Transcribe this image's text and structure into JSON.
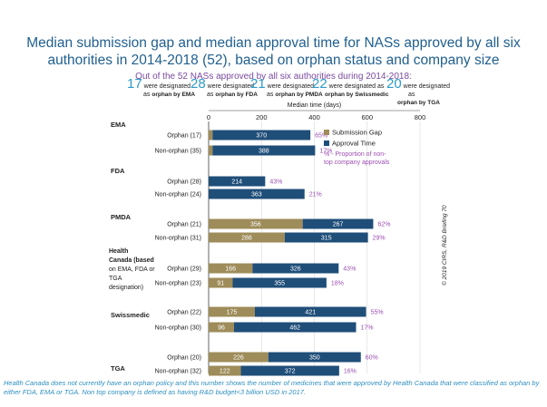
{
  "title_line1": "Median submission gap and median approval time for NASs approved by all six",
  "title_line2": "authorities in 2014-2018 (52), based on orphan status and company size",
  "subtitle": "Out of the 52 NASs approved by all six authorities during 2014-2018:",
  "stats": [
    {
      "num": "17",
      "pre": "were designated",
      "line2_pre": "as ",
      "line2_bold": "orphan by EMA",
      "line3": ""
    },
    {
      "num": "28",
      "pre": "were designated",
      "line2_pre": "as ",
      "line2_bold": "orphan by FDA",
      "line3": ""
    },
    {
      "num": "21",
      "pre": "were designated",
      "line2_pre": "as ",
      "line2_bold": "orphan by PMDA",
      "line3": ""
    },
    {
      "num": "22",
      "pre": "were designated as",
      "line2_pre": "",
      "line2_bold": "orphan by Swissmedic",
      "line3": ""
    },
    {
      "num": "20",
      "pre": "were designated",
      "line2_pre": "as",
      "line2_bold": "",
      "line3": "orphan by TGA"
    }
  ],
  "footnote": "Health Canada does not currently have an orphan policy and this number shows the number of medicines that were approved by Health Canada that were classified as orphan by either FDA, EMA or TGA. Non top company is defined as having R&D budget<3 billion USD in 2017.",
  "copyright": "© 2019 CIRS, R&D Briefing 70",
  "chart_data": {
    "type": "bar",
    "orientation": "horizontal",
    "stacked": true,
    "xlabel": "Median time (days)",
    "xlim": [
      0,
      800
    ],
    "xticks": [
      0,
      200,
      400,
      600,
      800
    ],
    "legend": {
      "placement": "right",
      "items": [
        "Submission Gap",
        "Approval Time"
      ],
      "note": "% - Proportion of non-top company approvals"
    },
    "colors": {
      "submission_gap": "#9e8c5a",
      "approval_time": "#1f4e79",
      "percent": "#9b4fb0",
      "accent": "#2e9ac8"
    },
    "groups": [
      {
        "name": "EMA",
        "rows": [
          {
            "label": "Orphan (17)",
            "gap": 15,
            "approval": 370,
            "gap_label": "",
            "approval_label": "370",
            "pct": "65%"
          },
          {
            "label": "Non-orphan (35)",
            "gap": 15,
            "approval": 388,
            "gap_label": "",
            "approval_label": "388",
            "pct": "17%"
          }
        ]
      },
      {
        "name": "FDA",
        "rows": [
          {
            "label": "Orphan (28)",
            "gap": 0,
            "approval": 214,
            "gap_label": "",
            "approval_label": "214",
            "pct": "43%"
          },
          {
            "label": "Non-orphan (24)",
            "gap": 0,
            "approval": 363,
            "gap_label": "",
            "approval_label": "363",
            "pct": "21%"
          }
        ]
      },
      {
        "name": "PMDA",
        "rows": [
          {
            "label": "Orphan (21)",
            "gap": 356,
            "approval": 267,
            "gap_label": "356",
            "approval_label": "267",
            "pct": "62%"
          },
          {
            "label": "Non-orphan (31)",
            "gap": 288,
            "approval": 315,
            "gap_label": "288",
            "approval_label": "315",
            "pct": "29%"
          }
        ]
      },
      {
        "name": "Health Canada (based on EMA, FDA or TGA designation)",
        "rows": [
          {
            "label": "Orphan (29)",
            "gap": 166,
            "approval": 326,
            "gap_label": "166",
            "approval_label": "326",
            "pct": "43%"
          },
          {
            "label": "Non-orphan (23)",
            "gap": 91,
            "approval": 355,
            "gap_label": "91",
            "approval_label": "355",
            "pct": "18%"
          }
        ]
      },
      {
        "name": "Swissmedic",
        "rows": [
          {
            "label": "Orphan (22)",
            "gap": 175,
            "approval": 421,
            "gap_label": "175",
            "approval_label": "421",
            "pct": "55%"
          },
          {
            "label": "Non-orphan (30)",
            "gap": 96,
            "approval": 462,
            "gap_label": "96",
            "approval_label": "462",
            "pct": "17%"
          }
        ]
      },
      {
        "name": "TGA",
        "rows": [
          {
            "label": "Orphan (20)",
            "gap": 226,
            "approval": 350,
            "gap_label": "226",
            "approval_label": "350",
            "pct": "60%"
          },
          {
            "label": "Non-orphan (32)",
            "gap": 122,
            "approval": 372,
            "gap_label": "122",
            "approval_label": "372",
            "pct": "16%"
          }
        ]
      }
    ]
  }
}
